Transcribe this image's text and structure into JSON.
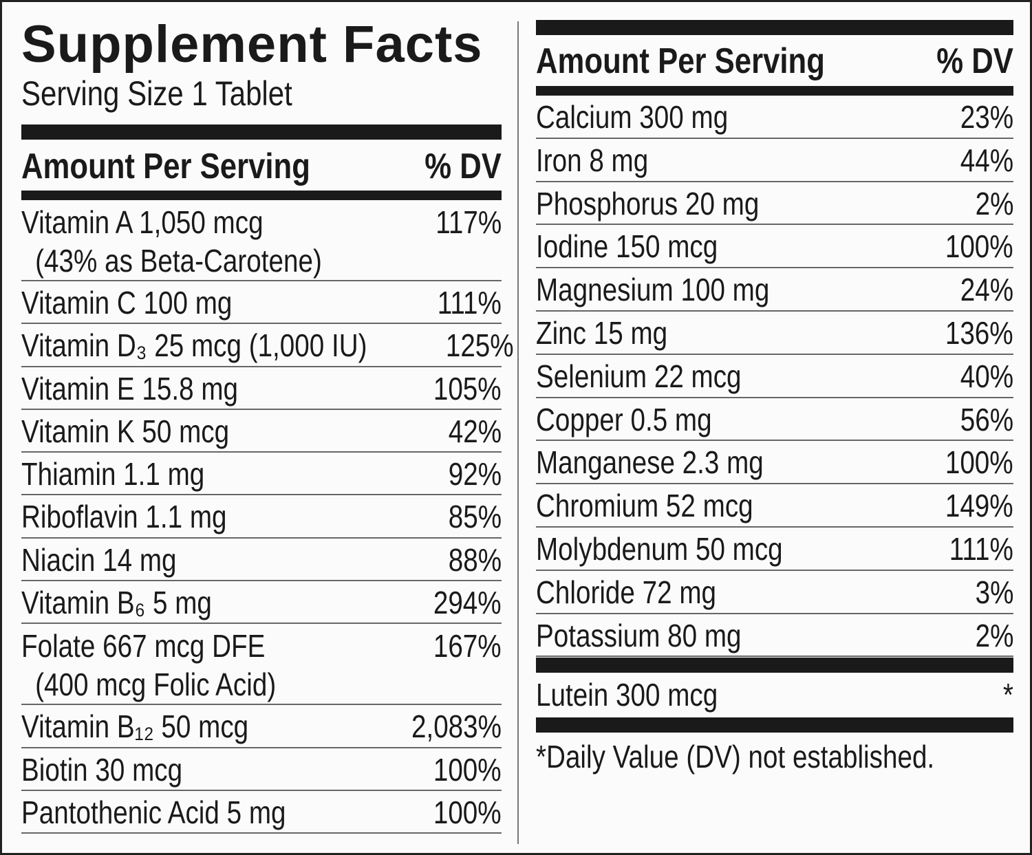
{
  "title": "Supplement Facts",
  "serving_size": "Serving Size 1 Tablet",
  "left_table": {
    "header": {
      "amount": "Amount Per Serving",
      "dv": "% DV"
    },
    "rows": [
      {
        "name": "Vitamin A 1,050 mcg",
        "note": "(43% as Beta-Carotene)",
        "dv": "117%"
      },
      {
        "name": "Vitamin C 100 mg",
        "dv": "111%"
      },
      {
        "name": "Vitamin D₃ 25 mcg (1,000 IU)",
        "dv": "125%"
      },
      {
        "name": "Vitamin E  15.8 mg",
        "dv": "105%"
      },
      {
        "name": "Vitamin K 50 mcg",
        "dv": "42%"
      },
      {
        "name": "Thiamin 1.1 mg",
        "dv": "92%"
      },
      {
        "name": "Riboflavin 1.1 mg",
        "dv": "85%"
      },
      {
        "name": "Niacin 14 mg",
        "dv": "88%"
      },
      {
        "name": "Vitamin B₆ 5 mg",
        "dv": "294%"
      },
      {
        "name": "Folate 667 mcg DFE",
        "note": "(400 mcg Folic Acid)",
        "dv": "167%"
      },
      {
        "name": "Vitamin B₁₂ 50 mcg",
        "dv": "2,083%"
      },
      {
        "name": "Biotin 30 mcg",
        "dv": "100%"
      },
      {
        "name": "Pantothenic Acid 5 mg",
        "dv": "100%"
      }
    ]
  },
  "right_table": {
    "header": {
      "amount": "Amount Per Serving",
      "dv": "% DV"
    },
    "rows": [
      {
        "name": "Calcium 300 mg",
        "dv": "23%"
      },
      {
        "name": "Iron 8 mg",
        "dv": "44%"
      },
      {
        "name": "Phosphorus 20 mg",
        "dv": "2%"
      },
      {
        "name": "Iodine 150 mcg",
        "dv": "100%"
      },
      {
        "name": "Magnesium 100 mg",
        "dv": "24%"
      },
      {
        "name": "Zinc 15 mg",
        "dv": "136%"
      },
      {
        "name": "Selenium 22 mcg",
        "dv": "40%"
      },
      {
        "name": "Copper 0.5 mg",
        "dv": "56%"
      },
      {
        "name": "Manganese 2.3 mg",
        "dv": "100%"
      },
      {
        "name": "Chromium 52 mcg",
        "dv": "149%"
      },
      {
        "name": "Molybdenum 50 mcg",
        "dv": "111%"
      },
      {
        "name": "Chloride 72 mg",
        "dv": "3%"
      },
      {
        "name": "Potassium 80 mg",
        "dv": "2%"
      }
    ],
    "extra_rows": [
      {
        "name": "Lutein 300 mcg",
        "dv": "*"
      }
    ]
  },
  "footnote": "*Daily Value (DV) not established."
}
